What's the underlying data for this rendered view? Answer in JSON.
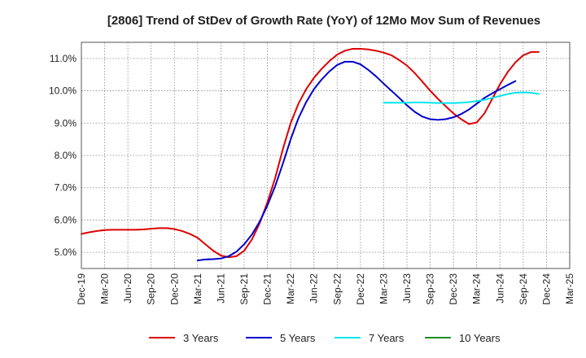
{
  "chart_data": {
    "type": "line",
    "title": "[2806]  Trend of StDev of Growth Rate (YoY) of 12Mo Mov Sum of Revenues",
    "xlabel": "",
    "ylabel": "",
    "x_tick_labels": [
      "Dec-19",
      "Mar-20",
      "Jun-20",
      "Sep-20",
      "Dec-20",
      "Mar-21",
      "Jun-21",
      "Sep-21",
      "Dec-21",
      "Mar-22",
      "Jun-22",
      "Sep-22",
      "Dec-22",
      "Mar-23",
      "Jun-23",
      "Sep-23",
      "Dec-23",
      "Mar-24",
      "Jun-24",
      "Sep-24",
      "Dec-24",
      "Mar-25"
    ],
    "y_tick_labels": [
      "5.0%",
      "6.0%",
      "7.0%",
      "8.0%",
      "9.0%",
      "10.0%",
      "11.0%"
    ],
    "y_ticks": [
      5.0,
      6.0,
      7.0,
      8.0,
      9.0,
      10.0,
      11.0
    ],
    "ylim": [
      4.5,
      11.5
    ],
    "x_start_index": 0,
    "x_end_index": 63,
    "grid": true,
    "legend_position": "bottom",
    "series": [
      {
        "name": "3 Years",
        "color": "#dd0000",
        "start_index": 0,
        "values": [
          5.57,
          5.62,
          5.66,
          5.69,
          5.7,
          5.7,
          5.7,
          5.7,
          5.71,
          5.73,
          5.75,
          5.75,
          5.72,
          5.66,
          5.57,
          5.45,
          5.25,
          5.05,
          4.9,
          4.85,
          4.88,
          5.05,
          5.4,
          5.9,
          6.55,
          7.3,
          8.2,
          9.0,
          9.6,
          10.05,
          10.4,
          10.68,
          10.92,
          11.12,
          11.24,
          11.3,
          11.3,
          11.28,
          11.24,
          11.18,
          11.1,
          10.95,
          10.78,
          10.55,
          10.28,
          10.0,
          9.75,
          9.52,
          9.3,
          9.12,
          8.97,
          9.02,
          9.3,
          9.75,
          10.2,
          10.58,
          10.88,
          11.1,
          11.2,
          11.2
        ]
      },
      {
        "name": "5 Years",
        "color": "#0000cc",
        "start_index": 15,
        "values": [
          4.75,
          4.78,
          4.79,
          4.81,
          4.88,
          5.02,
          5.25,
          5.55,
          5.95,
          6.45,
          7.05,
          7.75,
          8.5,
          9.15,
          9.65,
          10.05,
          10.35,
          10.6,
          10.8,
          10.9,
          10.9,
          10.82,
          10.65,
          10.45,
          10.22,
          10.0,
          9.78,
          9.55,
          9.35,
          9.2,
          9.12,
          9.1,
          9.12,
          9.18,
          9.28,
          9.42,
          9.6,
          9.78,
          9.92,
          10.05,
          10.18,
          10.3
        ]
      },
      {
        "name": "7 Years",
        "color": "#00e5ee",
        "start_index": 39,
        "values": [
          9.63,
          9.63,
          9.63,
          9.63,
          9.64,
          9.64,
          9.63,
          9.62,
          9.62,
          9.62,
          9.63,
          9.65,
          9.68,
          9.72,
          9.78,
          9.84,
          9.9,
          9.94,
          9.95,
          9.94,
          9.9
        ]
      },
      {
        "name": "10 Years",
        "color": "#228b22",
        "start_index": 0,
        "values": []
      }
    ]
  }
}
